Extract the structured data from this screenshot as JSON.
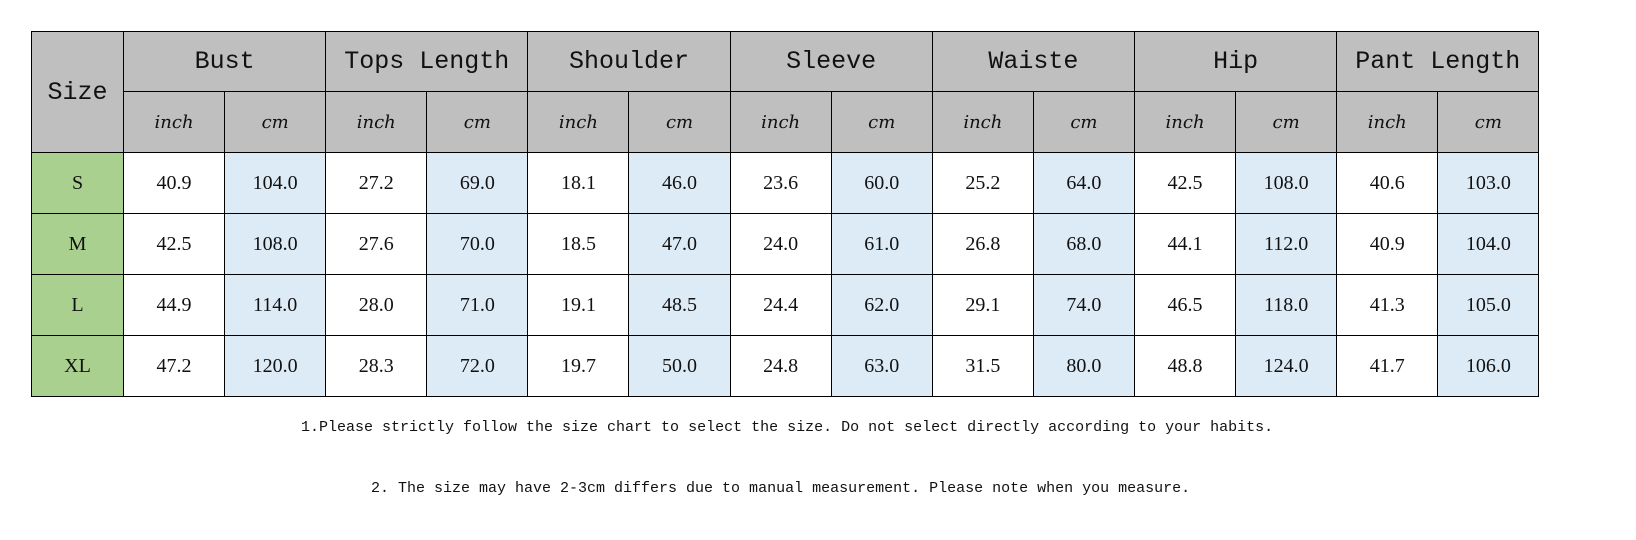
{
  "table": {
    "size_header": "Size",
    "groups": [
      "Bust",
      "Tops Length",
      "Shoulder",
      "Sleeve",
      "Waiste",
      "Hip",
      "Pant Length"
    ],
    "units": [
      "inch",
      "cm"
    ],
    "rows": [
      {
        "size": "S",
        "values": [
          "40.9",
          "104.0",
          "27.2",
          "69.0",
          "18.1",
          "46.0",
          "23.6",
          "60.0",
          "25.2",
          "64.0",
          "42.5",
          "108.0",
          "40.6",
          "103.0"
        ]
      },
      {
        "size": "M",
        "values": [
          "42.5",
          "108.0",
          "27.6",
          "70.0",
          "18.5",
          "47.0",
          "24.0",
          "61.0",
          "26.8",
          "68.0",
          "44.1",
          "112.0",
          "40.9",
          "104.0"
        ]
      },
      {
        "size": "L",
        "values": [
          "44.9",
          "114.0",
          "28.0",
          "71.0",
          "19.1",
          "48.5",
          "24.4",
          "62.0",
          "29.1",
          "74.0",
          "46.5",
          "118.0",
          "41.3",
          "105.0"
        ]
      },
      {
        "size": "XL",
        "values": [
          "47.2",
          "120.0",
          "28.3",
          "72.0",
          "19.7",
          "50.0",
          "24.8",
          "63.0",
          "31.5",
          "80.0",
          "48.8",
          "124.0",
          "41.7",
          "106.0"
        ]
      }
    ]
  },
  "colors": {
    "header": "#bfbfbf",
    "size_cell": "#a9d08e",
    "cm_cell": "#ddebf7"
  },
  "notes": [
    "1.Please strictly follow the size chart to select the size. Do not select directly according to your habits.",
    "2. The size may have 2-3cm differs due to manual measurement. Please note when you measure."
  ]
}
